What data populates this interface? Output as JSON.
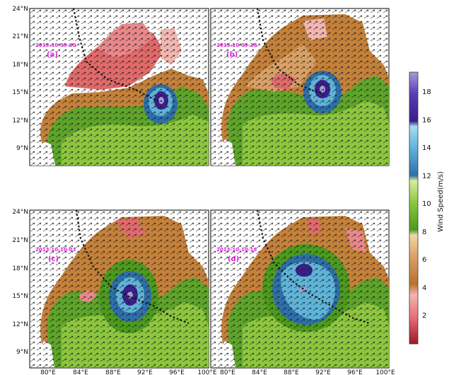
{
  "panels": [
    {
      "id": "a",
      "timestamp": "2013-10-09-00",
      "label": "(a)"
    },
    {
      "id": "b",
      "timestamp": "2013-10-09-18",
      "label": "(b)"
    },
    {
      "id": "c",
      "timestamp": "2013-10-10-03",
      "label": "(c)"
    },
    {
      "id": "d",
      "timestamp": "2013-10-10-18",
      "label": "(d)"
    }
  ],
  "lat_ticks_top": [
    "24°N",
    "21°N",
    "18°N",
    "15°N",
    "12°N",
    "9°N"
  ],
  "lat_ticks_bottom": [
    "24°N",
    "21°N",
    "18°N",
    "15°N",
    "12°N",
    "9°N"
  ],
  "lon_ticks_left": [
    "80°E",
    "84°E",
    "88°E",
    "92°E",
    "96°E",
    "100°E"
  ],
  "lon_ticks_right": [
    "80°E",
    "84°E",
    "88°E",
    "92°E",
    "96°E",
    "100°E"
  ],
  "colorbar": {
    "label": "Wind Speed(m/s)",
    "ticks": [
      "18",
      "16",
      "14",
      "12",
      "10",
      "8",
      "6",
      "4",
      "2"
    ],
    "range": [
      0,
      19.5
    ],
    "colors": [
      "#a01828",
      "#e8707a",
      "#f2b6b0",
      "#b8732e",
      "#d9a066",
      "#f3d6a8",
      "#4c9a1e",
      "#8cc63f",
      "#d8ee9a",
      "#2e6fa8",
      "#5fb3d9",
      "#a8dcef",
      "#3a1f8a",
      "#5a3bb8",
      "#a89ad8"
    ]
  }
}
